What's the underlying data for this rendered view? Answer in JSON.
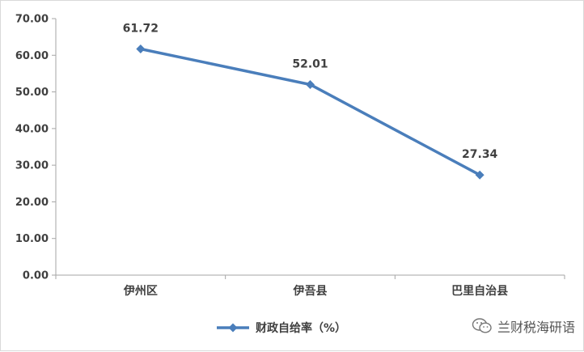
{
  "chart_data": {
    "type": "line",
    "categories": [
      "伊州区",
      "伊吾县",
      "巴里自治县"
    ],
    "series": [
      {
        "name": "财政自给率（%）",
        "values": [
          61.72,
          52.01,
          27.34
        ],
        "color": "#4a7ebb"
      }
    ],
    "data_labels": [
      "61.72",
      "52.01",
      "27.34"
    ],
    "ylim": [
      0,
      70
    ],
    "yticks": [
      "0.00",
      "10.00",
      "20.00",
      "30.00",
      "40.00",
      "50.00",
      "60.00",
      "70.00"
    ],
    "grid": false,
    "legend_position": "bottom",
    "marker": "diamond"
  },
  "watermark": {
    "text": "兰财税海研语",
    "icon": "wechat-icon"
  }
}
